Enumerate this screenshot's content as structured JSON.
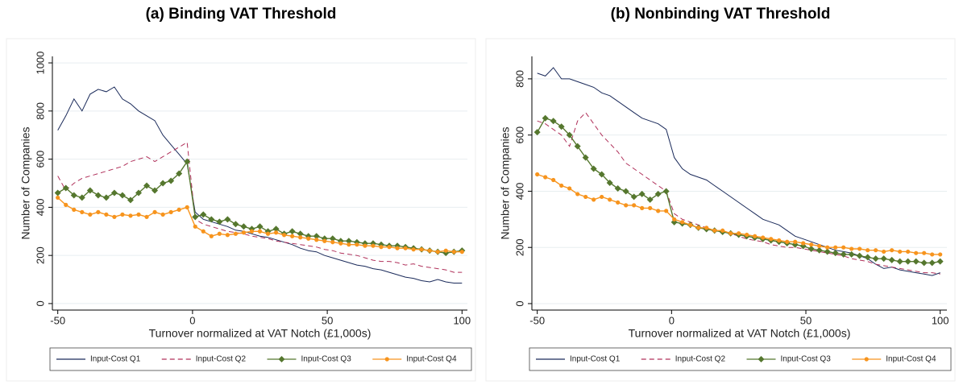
{
  "chart_data": [
    {
      "type": "line",
      "title": "(a) Binding VAT Threshold",
      "xlabel": "Turnover normalized at VAT Notch (£1,000s)",
      "ylabel": "Number of Companies",
      "xlim": [
        -52,
        102
      ],
      "ylim": [
        -27,
        1027
      ],
      "xticks": [
        -50,
        0,
        50,
        100
      ],
      "yticks": [
        0,
        200,
        400,
        600,
        800,
        1000
      ],
      "grid": true,
      "x": [
        -50,
        -47,
        -44,
        -41,
        -38,
        -35,
        -32,
        -29,
        -26,
        -23,
        -20,
        -17,
        -14,
        -11,
        -8,
        -5,
        -2,
        1,
        4,
        7,
        10,
        13,
        16,
        19,
        22,
        25,
        28,
        31,
        34,
        37,
        40,
        43,
        46,
        49,
        52,
        55,
        58,
        61,
        64,
        67,
        70,
        73,
        76,
        79,
        82,
        85,
        88,
        91,
        94,
        97,
        100
      ],
      "series": [
        {
          "name": "Input-Cost Q1",
          "color": "#1a2a5a",
          "dash": "solid",
          "marker": "none",
          "values": [
            720,
            780,
            850,
            800,
            870,
            890,
            880,
            900,
            850,
            830,
            800,
            780,
            760,
            700,
            660,
            620,
            580,
            380,
            350,
            340,
            330,
            320,
            305,
            300,
            290,
            280,
            275,
            265,
            255,
            245,
            230,
            220,
            215,
            200,
            190,
            180,
            170,
            160,
            155,
            145,
            140,
            130,
            120,
            110,
            105,
            95,
            90,
            100,
            90,
            85,
            85
          ]
        },
        {
          "name": "Input-Cost Q2",
          "color": "#b0305a",
          "dash": "dash",
          "marker": "none",
          "values": [
            530,
            470,
            500,
            520,
            530,
            540,
            550,
            560,
            570,
            590,
            600,
            610,
            590,
            610,
            630,
            650,
            670,
            350,
            330,
            320,
            310,
            300,
            295,
            290,
            280,
            275,
            270,
            260,
            255,
            250,
            245,
            240,
            235,
            225,
            220,
            210,
            205,
            200,
            190,
            180,
            175,
            175,
            170,
            160,
            165,
            155,
            150,
            145,
            140,
            130,
            130
          ]
        },
        {
          "name": "Input-Cost Q3",
          "color": "#55772e",
          "dash": "solid",
          "marker": "diamond",
          "values": [
            460,
            480,
            450,
            440,
            470,
            450,
            440,
            460,
            450,
            430,
            460,
            490,
            470,
            500,
            510,
            540,
            590,
            360,
            370,
            350,
            340,
            350,
            330,
            320,
            310,
            320,
            300,
            310,
            290,
            300,
            290,
            280,
            280,
            270,
            270,
            260,
            260,
            255,
            250,
            250,
            245,
            240,
            240,
            235,
            230,
            225,
            220,
            215,
            210,
            215,
            220
          ]
        },
        {
          "name": "Input-Cost Q4",
          "color": "#f7941d",
          "dash": "solid",
          "marker": "circle",
          "values": [
            440,
            410,
            390,
            380,
            370,
            380,
            370,
            360,
            370,
            365,
            370,
            360,
            380,
            370,
            380,
            390,
            400,
            320,
            300,
            280,
            290,
            285,
            290,
            295,
            300,
            300,
            290,
            295,
            285,
            280,
            275,
            270,
            265,
            260,
            255,
            250,
            245,
            245,
            240,
            240,
            235,
            235,
            230,
            230,
            225,
            225,
            220,
            215,
            220,
            215,
            215
          ]
        }
      ]
    },
    {
      "type": "line",
      "title": "(b) Nonbinding VAT Threshold",
      "xlabel": "Turnover normalized at VAT Notch (£1,000s)",
      "ylabel": "Number of Companies",
      "xlim": [
        -52,
        102.5
      ],
      "ylim": [
        -23,
        880
      ],
      "xticks": [
        -50,
        0,
        50,
        100
      ],
      "yticks": [
        0,
        200,
        400,
        600,
        800
      ],
      "grid": true,
      "x": [
        -50,
        -47,
        -44,
        -41,
        -38,
        -35,
        -32,
        -29,
        -26,
        -23,
        -20,
        -17,
        -14,
        -11,
        -8,
        -5,
        -2,
        1,
        4,
        7,
        10,
        13,
        16,
        19,
        22,
        25,
        28,
        31,
        34,
        37,
        40,
        43,
        46,
        49,
        52,
        55,
        58,
        61,
        64,
        67,
        70,
        73,
        76,
        79,
        82,
        85,
        88,
        91,
        94,
        97,
        100
      ],
      "series": [
        {
          "name": "Input-Cost Q1",
          "color": "#1a2a5a",
          "dash": "solid",
          "marker": "none",
          "values": [
            820,
            810,
            840,
            800,
            800,
            790,
            780,
            770,
            750,
            740,
            720,
            700,
            680,
            660,
            650,
            640,
            620,
            520,
            480,
            460,
            450,
            440,
            420,
            400,
            380,
            360,
            340,
            320,
            300,
            290,
            280,
            260,
            240,
            230,
            220,
            210,
            200,
            190,
            185,
            180,
            170,
            160,
            140,
            125,
            130,
            120,
            115,
            110,
            105,
            100,
            110
          ]
        },
        {
          "name": "Input-Cost Q2",
          "color": "#b0305a",
          "dash": "dash",
          "marker": "none",
          "values": [
            650,
            640,
            620,
            600,
            560,
            650,
            680,
            640,
            600,
            570,
            540,
            500,
            480,
            460,
            440,
            420,
            400,
            320,
            300,
            290,
            280,
            270,
            260,
            260,
            250,
            240,
            230,
            225,
            220,
            210,
            205,
            200,
            200,
            195,
            190,
            185,
            180,
            175,
            170,
            160,
            155,
            150,
            140,
            135,
            130,
            125,
            120,
            115,
            110,
            110,
            105
          ]
        },
        {
          "name": "Input-Cost Q3",
          "color": "#55772e",
          "dash": "solid",
          "marker": "diamond",
          "values": [
            610,
            660,
            650,
            630,
            600,
            560,
            520,
            480,
            460,
            430,
            410,
            400,
            380,
            390,
            370,
            390,
            400,
            290,
            285,
            280,
            270,
            265,
            260,
            255,
            250,
            245,
            240,
            235,
            230,
            225,
            220,
            215,
            210,
            205,
            195,
            190,
            185,
            180,
            175,
            175,
            170,
            165,
            160,
            160,
            155,
            150,
            150,
            150,
            145,
            145,
            150
          ]
        },
        {
          "name": "Input-Cost Q4",
          "color": "#f7941d",
          "dash": "solid",
          "marker": "circle",
          "values": [
            460,
            450,
            440,
            420,
            410,
            390,
            380,
            370,
            380,
            370,
            360,
            350,
            350,
            340,
            340,
            330,
            330,
            300,
            290,
            280,
            270,
            270,
            260,
            260,
            250,
            250,
            245,
            240,
            235,
            230,
            225,
            220,
            220,
            215,
            210,
            205,
            200,
            200,
            200,
            195,
            195,
            190,
            190,
            185,
            190,
            185,
            185,
            180,
            180,
            175,
            175
          ]
        }
      ]
    }
  ]
}
